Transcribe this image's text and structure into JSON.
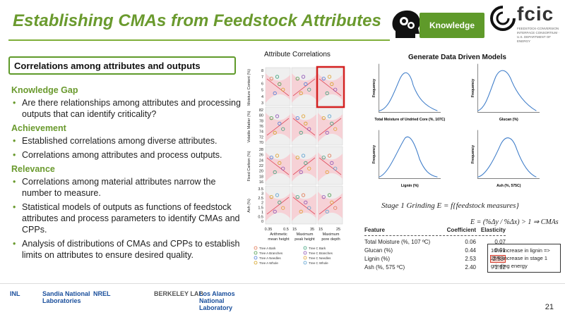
{
  "header": {
    "title": "Establishing CMAs from Feedstock Attributes",
    "badge": "Knowledge",
    "org_logo": "fcic",
    "org_subtitle": "FEEDSTOCK-CONVERSION INTERFACE CONSORTIUM · U.S. DEPARTMENT OF ENERGY"
  },
  "section": {
    "heading": "Correlations among attributes and outputs",
    "blocks": [
      {
        "title": "Knowledge Gap",
        "bullets": [
          "Are there relationships among attributes and processing outputs that can identify criticality?"
        ]
      },
      {
        "title": "Achievement",
        "bullets": [
          "Established correlations among diverse attributes.",
          "Correlations among attributes and process outputs."
        ]
      },
      {
        "title": "Relevance",
        "bullets": [
          "Correlations among material attributes narrow the number to measure.",
          "Statistical models of outputs as functions of feedstock attributes and process parameters to identify CMAs and CPPs.",
          "Analysis of distributions of CMAs and CPPs to establish limits on attributes to ensure desired quality."
        ]
      }
    ]
  },
  "correlation_figure": {
    "title": "Attribute Correlations",
    "row_labels": [
      "Moisture Content (%)",
      "Volatile Matter (%)",
      "Fixed Carbon (%)",
      "Ash (%)"
    ],
    "row_ticks": [
      [
        "8",
        "7",
        "6",
        "5",
        "4",
        "3"
      ],
      [
        "82",
        "80",
        "78",
        "76",
        "74",
        "72",
        "70"
      ],
      [
        "28",
        "26",
        "24",
        "22",
        "20",
        "18",
        "16"
      ],
      [
        "3.5",
        "3",
        "2.5",
        "2",
        "1.5",
        "1",
        "0.5",
        "0"
      ]
    ],
    "col_labels": [
      "Arithmetic mean height",
      "Maximum peak height",
      "Maximum pore depth"
    ],
    "col_ticks": [
      [
        "0.35",
        "0.5"
      ],
      [
        "15",
        "35"
      ],
      [
        "15",
        "25"
      ]
    ],
    "legend": [
      {
        "label": "Tree A Bark",
        "marker": "circle",
        "color": "#e0754f"
      },
      {
        "label": "Tree A Branches",
        "marker": "triangle-up",
        "color": "#4a9a4a"
      },
      {
        "label": "Tree A Needles",
        "marker": "triangle-down",
        "color": "#4a7ad8"
      },
      {
        "label": "Tree A Whole",
        "marker": "square",
        "color": "#d4a020"
      },
      {
        "label": "Tree C Bark",
        "marker": "diamond",
        "color": "#3aa07a"
      },
      {
        "label": "Tree C Branches",
        "marker": "triangle-left",
        "color": "#8c50b4"
      },
      {
        "label": "Tree C Needles",
        "marker": "triangle-right",
        "color": "#e0a030"
      },
      {
        "label": "Tree C Whole",
        "marker": "square-open",
        "color": "#5aa0d0"
      }
    ]
  },
  "models": {
    "title": "Generate Data Driven Models",
    "plots": [
      {
        "xlabel": "Total Moisture of Undried Core (%, 107C)",
        "ylabel": "Frequency"
      },
      {
        "xlabel": "Glucan (%)",
        "ylabel": "Frequency"
      },
      {
        "xlabel": "Lignin (%)",
        "ylabel": "Frequency"
      },
      {
        "xlabel": "Ash (%, 575C)",
        "ylabel": "Frequency"
      }
    ],
    "equation": "Stage 1 Grinding E = f{feedstock measures}"
  },
  "table": {
    "headers": [
      "Feature",
      "Coefficient",
      "Elasticity"
    ],
    "rows": [
      [
        "Total Moisture (%, 107 ºC)",
        "0.06",
        "0.07"
      ],
      [
        "Glucan (%)",
        "0.44",
        "0.91"
      ],
      [
        "Lignin (%)",
        "2.53",
        "2.53"
      ],
      [
        "Ash (%, 575 ºC)",
        "2.40",
        "1.12"
      ]
    ]
  },
  "elasticity_formula": "E = (%Δy / %Δx) > 1 ⇒ CMAs",
  "note": "10% increase in lignin => 25% increase in stage 1 grinding energy",
  "footer": {
    "logos": [
      "INL",
      "Sandia National Laboratories",
      "NREL",
      "BERKELEY LAB",
      "Los Alamos National Laboratory"
    ],
    "page": "21"
  }
}
